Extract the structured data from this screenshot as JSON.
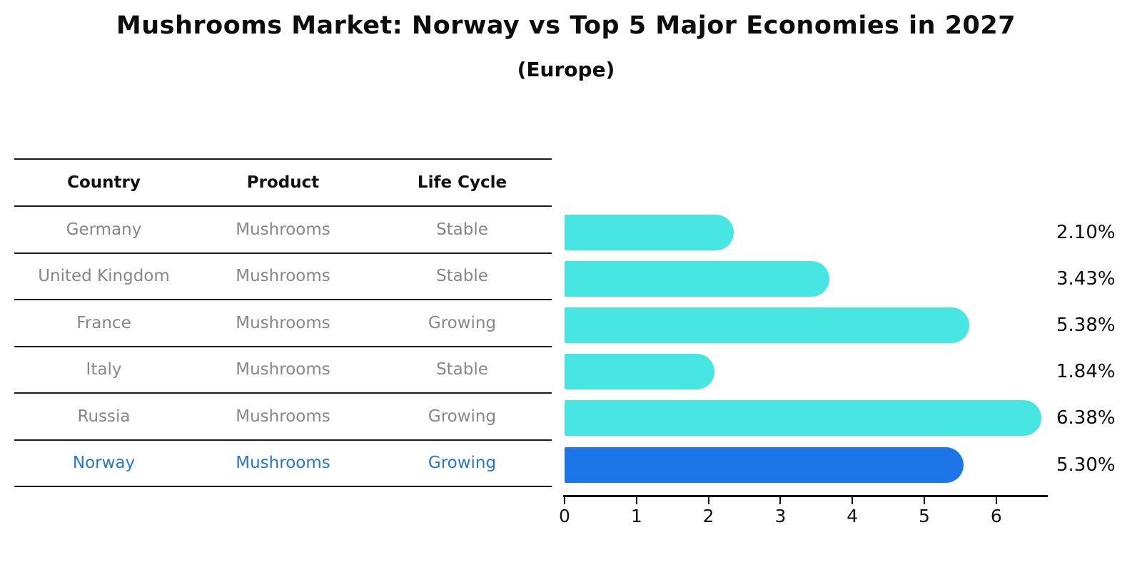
{
  "title": "Mushrooms Market: Norway vs Top 5 Major Economies in 2027",
  "subtitle": "(Europe)",
  "colors": {
    "bar_default": "#47e6e2",
    "bar_highlight": "#1c76e8",
    "highlight_text": "#2478cf",
    "row_text": "#878787",
    "header_text": "#111111",
    "axis": "#111111"
  },
  "table": {
    "headers": [
      "Country",
      "Product",
      "Life Cycle"
    ],
    "rows": [
      {
        "country": "Germany",
        "product": "Mushrooms",
        "life_cycle": "Stable",
        "highlight": false
      },
      {
        "country": "United Kingdom",
        "product": "Mushrooms",
        "life_cycle": "Stable",
        "highlight": false
      },
      {
        "country": "France",
        "product": "Mushrooms",
        "life_cycle": "Growing",
        "highlight": false
      },
      {
        "country": "Italy",
        "product": "Mushrooms",
        "life_cycle": "Stable",
        "highlight": false
      },
      {
        "country": "Russia",
        "product": "Mushrooms",
        "life_cycle": "Growing",
        "highlight": false
      },
      {
        "country": "Norway",
        "product": "Mushrooms",
        "life_cycle": "Growing",
        "highlight": true
      }
    ]
  },
  "chart_data": {
    "type": "bar",
    "orientation": "horizontal",
    "title": "Mushrooms Market: Norway vs Top 5 Major Economies in 2027",
    "subtitle": "(Europe)",
    "categories": [
      "Germany",
      "United Kingdom",
      "France",
      "Italy",
      "Russia",
      "Norway"
    ],
    "values": [
      2.1,
      3.43,
      5.38,
      1.84,
      6.38,
      5.3
    ],
    "value_labels": [
      "2.10%",
      "3.43%",
      "5.38%",
      "1.84%",
      "6.38%",
      "5.30%"
    ],
    "highlight_index": 5,
    "x_ticks": [
      "0",
      "1",
      "2",
      "3",
      "4",
      "5",
      "6"
    ],
    "xlim": [
      0,
      6.7
    ],
    "grid": false,
    "legend": false
  }
}
